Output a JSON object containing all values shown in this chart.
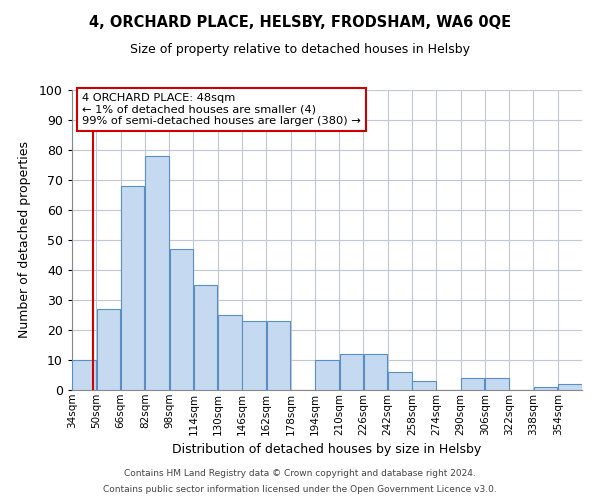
{
  "title": "4, ORCHARD PLACE, HELSBY, FRODSHAM, WA6 0QE",
  "subtitle": "Size of property relative to detached houses in Helsby",
  "xlabel": "Distribution of detached houses by size in Helsby",
  "ylabel": "Number of detached properties",
  "bar_color": "#c5d9f0",
  "bar_edge_color": "#5a8fc4",
  "background_color": "#ffffff",
  "grid_color": "#c0c8d8",
  "annotation_box_color": "#cc0000",
  "vline_color": "#cc0000",
  "vline_x": 48,
  "categories": [
    "34sqm",
    "50sqm",
    "66sqm",
    "82sqm",
    "98sqm",
    "114sqm",
    "130sqm",
    "146sqm",
    "162sqm",
    "178sqm",
    "194sqm",
    "210sqm",
    "226sqm",
    "242sqm",
    "258sqm",
    "274sqm",
    "290sqm",
    "306sqm",
    "322sqm",
    "338sqm",
    "354sqm"
  ],
  "bin_edges": [
    34,
    50,
    66,
    82,
    98,
    114,
    130,
    146,
    162,
    178,
    194,
    210,
    226,
    242,
    258,
    274,
    290,
    306,
    322,
    338,
    354,
    370
  ],
  "values": [
    10,
    27,
    68,
    78,
    47,
    35,
    25,
    23,
    23,
    0,
    10,
    12,
    12,
    6,
    3,
    0,
    4,
    4,
    0,
    1,
    2
  ],
  "ylim": [
    0,
    100
  ],
  "yticks": [
    0,
    10,
    20,
    30,
    40,
    50,
    60,
    70,
    80,
    90,
    100
  ],
  "annotation_title": "4 ORCHARD PLACE: 48sqm",
  "annotation_line1": "← 1% of detached houses are smaller (4)",
  "annotation_line2": "99% of semi-detached houses are larger (380) →",
  "footer_line1": "Contains HM Land Registry data © Crown copyright and database right 2024.",
  "footer_line2": "Contains public sector information licensed under the Open Government Licence v3.0."
}
